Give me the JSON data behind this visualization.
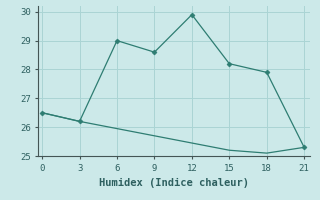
{
  "xlabel": "Humidex (Indice chaleur)",
  "ylabel": "",
  "background_color": "#cce9e9",
  "grid_color": "#aad4d4",
  "line1_x": [
    0,
    3,
    6,
    9,
    12,
    15,
    18,
    21
  ],
  "line1_y": [
    26.5,
    26.2,
    29.0,
    28.6,
    29.9,
    28.2,
    27.9,
    25.3
  ],
  "line2_x": [
    0,
    3,
    6,
    9,
    12,
    15,
    18,
    21
  ],
  "line2_y": [
    26.5,
    26.2,
    25.95,
    25.7,
    25.45,
    25.2,
    25.1,
    25.3
  ],
  "line_color": "#2e7d72",
  "marker_style": "D",
  "marker_size": 2.5,
  "xlim": [
    -0.3,
    21.5
  ],
  "ylim": [
    25.0,
    30.2
  ],
  "xticks": [
    0,
    3,
    6,
    9,
    12,
    15,
    18,
    21
  ],
  "yticks": [
    25,
    26,
    27,
    28,
    29,
    30
  ],
  "axis_fontsize": 7.5,
  "tick_fontsize": 6.5
}
